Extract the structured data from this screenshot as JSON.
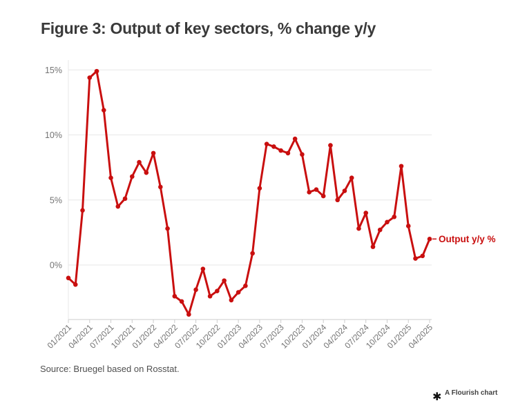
{
  "title": "Figure 3: Output of key sectors, % change y/y",
  "source_note": "Source: Bruegel based on Rosstat.",
  "flourish_credit": {
    "label": "A Flourish chart",
    "icon": "asterisk-star-icon",
    "icon_glyph": "✱"
  },
  "colors": {
    "line": "#c90f0f",
    "title_text": "#3a3a3a",
    "axis_text": "#737373",
    "gridline": "#e7e7e7",
    "axis_line": "#cccccc",
    "source_text": "#4f4f4f"
  },
  "chart_data": {
    "type": "line",
    "title": "Figure 3: Output of key sectors, % change y/y",
    "series": [
      {
        "name": "Output y/y %",
        "values": [
          -1.0,
          -1.5,
          4.2,
          14.4,
          14.9,
          11.9,
          6.7,
          4.5,
          5.1,
          6.8,
          7.9,
          7.1,
          8.6,
          6.0,
          2.8,
          -2.4,
          -2.8,
          -3.8,
          -1.9,
          -0.3,
          -2.4,
          -2.0,
          -1.2,
          -2.7,
          -2.1,
          -1.6,
          0.9,
          5.9,
          9.3,
          9.1,
          8.8,
          8.6,
          9.7,
          8.5,
          5.6,
          5.8,
          5.3,
          9.2,
          5.0,
          5.7,
          6.7,
          2.8,
          4.0,
          1.4,
          2.7,
          3.3,
          3.7,
          7.6,
          3.0,
          0.5,
          0.7,
          2.0
        ]
      }
    ],
    "x": [
      "01/2021",
      "02/2021",
      "03/2021",
      "04/2021",
      "05/2021",
      "06/2021",
      "07/2021",
      "08/2021",
      "09/2021",
      "10/2021",
      "11/2021",
      "12/2021",
      "01/2022",
      "02/2022",
      "03/2022",
      "04/2022",
      "05/2022",
      "06/2022",
      "07/2022",
      "08/2022",
      "09/2022",
      "10/2022",
      "11/2022",
      "12/2022",
      "01/2023",
      "02/2023",
      "03/2023",
      "04/2023",
      "05/2023",
      "06/2023",
      "07/2023",
      "08/2023",
      "09/2023",
      "10/2023",
      "11/2023",
      "12/2023",
      "01/2024",
      "02/2024",
      "03/2024",
      "04/2024",
      "05/2024",
      "06/2024",
      "07/2024",
      "08/2024",
      "09/2024",
      "10/2024",
      "11/2024",
      "12/2024",
      "01/2025",
      "02/2025",
      "03/2025",
      "04/2025"
    ],
    "x_tick_labels": [
      "01/2021",
      "04/2021",
      "07/2021",
      "10/2021",
      "01/2022",
      "04/2022",
      "07/2022",
      "10/2022",
      "01/2023",
      "04/2023",
      "07/2023",
      "10/2023",
      "01/2024",
      "04/2024",
      "07/2024",
      "10/2024",
      "01/2025",
      "04/2025"
    ],
    "y_ticks": [
      0,
      5,
      10,
      15
    ],
    "y_tick_labels": [
      "0%",
      "5%",
      "10%",
      "15%"
    ],
    "ylim": [
      -4.2,
      15.7
    ],
    "grid": "horizontal",
    "legend": "end-of-line-label",
    "end_label": "Output y/y %",
    "marker": "circle",
    "xlabel": "",
    "ylabel": ""
  }
}
